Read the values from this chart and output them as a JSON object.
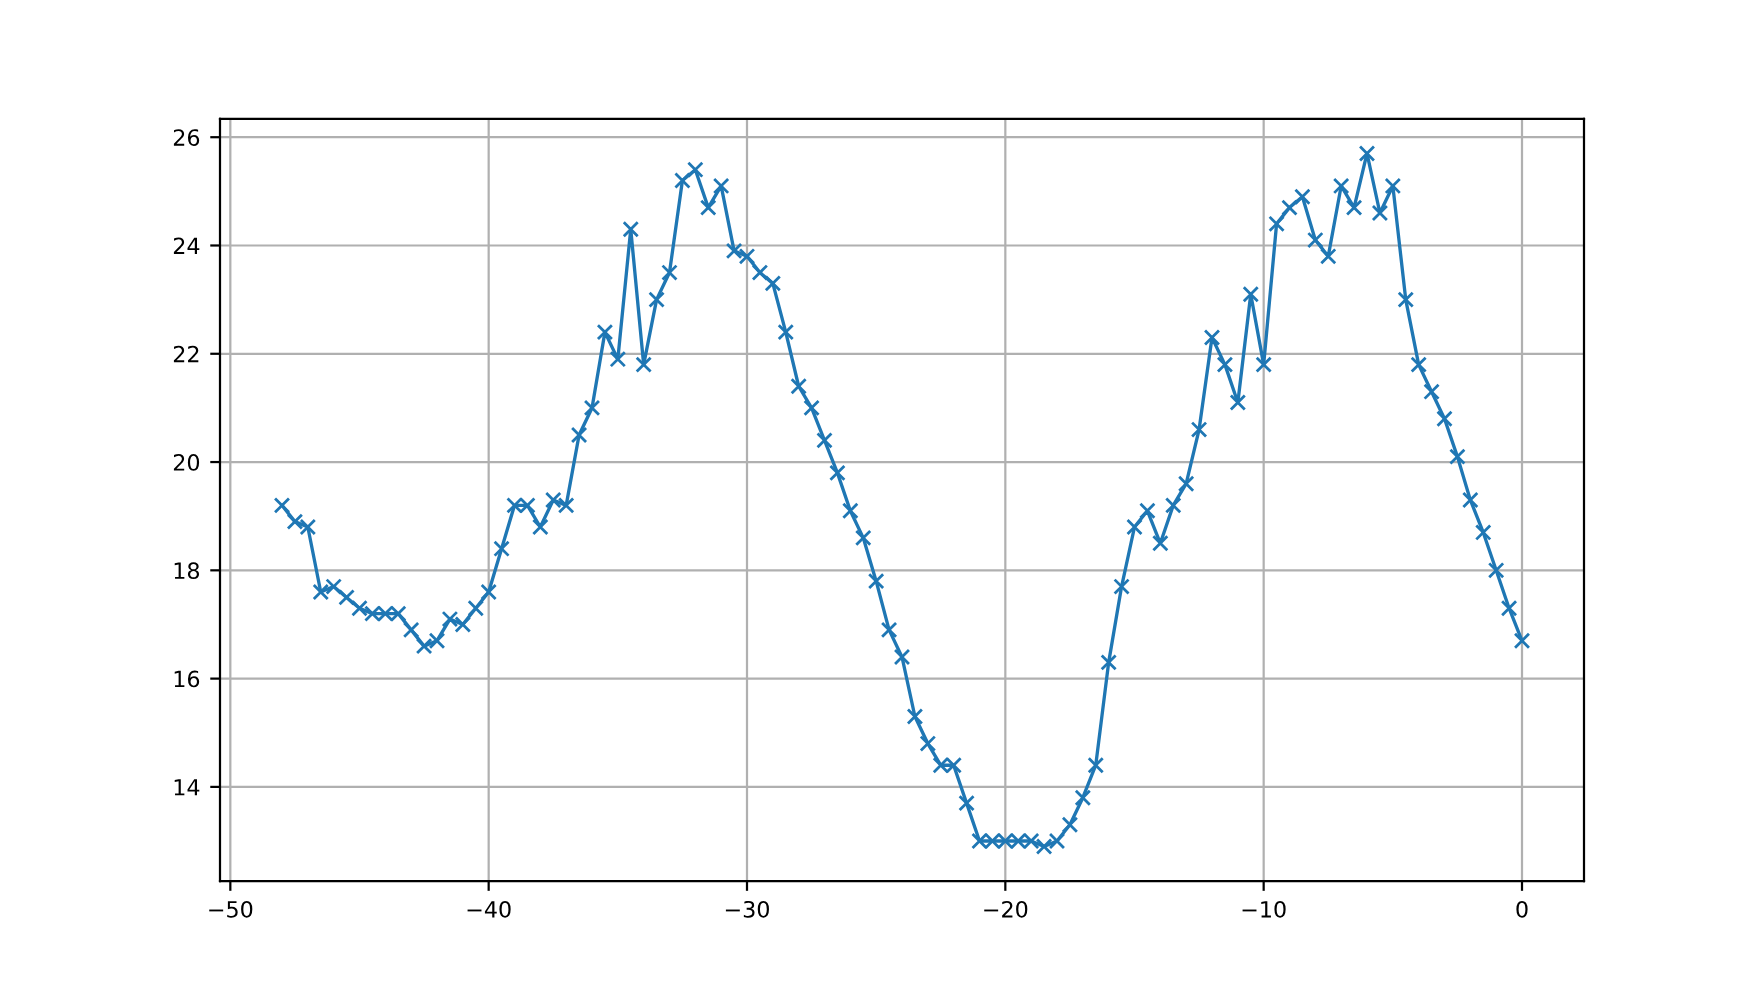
{
  "chart_data": {
    "type": "line",
    "x": [
      -48,
      -47.5,
      -47,
      -46.5,
      -46,
      -45.5,
      -45,
      -44.5,
      -44,
      -43.5,
      -43,
      -42.5,
      -42,
      -41.5,
      -41,
      -40.5,
      -40,
      -39.5,
      -39,
      -38.5,
      -38,
      -37.5,
      -37,
      -36.5,
      -36,
      -35.5,
      -35,
      -34.5,
      -34,
      -33.5,
      -33,
      -32.5,
      -32,
      -31.5,
      -31,
      -30.5,
      -30,
      -29.5,
      -29,
      -28.5,
      -28,
      -27.5,
      -27,
      -26.5,
      -26,
      -25.5,
      -25,
      -24.5,
      -24,
      -23.5,
      -23,
      -22.5,
      -22,
      -21.5,
      -21,
      -20.5,
      -20,
      -19.5,
      -19,
      -18.5,
      -18,
      -17.5,
      -17,
      -16.5,
      -16,
      -15.5,
      -15,
      -14.5,
      -14,
      -13.5,
      -13,
      -12.5,
      -12,
      -11.5,
      -11,
      -10.5,
      -10,
      -9.5,
      -9,
      -8.5,
      -8,
      -7.5,
      -7,
      -6.5,
      -6,
      -5.5,
      -5,
      -4.5,
      -4,
      -3.5,
      -3,
      -2.5,
      -2,
      -1.5,
      -1,
      -0.5,
      0
    ],
    "series": [
      {
        "color": "#1f77b4",
        "values": [
          19.2,
          18.9,
          18.8,
          17.6,
          17.7,
          17.5,
          17.3,
          17.2,
          17.2,
          17.2,
          16.9,
          16.6,
          16.7,
          17.1,
          17.0,
          17.3,
          17.6,
          18.4,
          19.2,
          19.2,
          18.8,
          19.3,
          19.2,
          20.5,
          21.0,
          22.4,
          21.9,
          24.3,
          21.8,
          23.0,
          23.5,
          25.2,
          25.4,
          24.7,
          25.1,
          23.9,
          23.8,
          23.5,
          23.3,
          22.4,
          21.4,
          21.0,
          20.4,
          19.8,
          19.1,
          18.6,
          17.8,
          16.9,
          16.4,
          15.3,
          14.8,
          14.4,
          14.4,
          13.7,
          13.0,
          13.0,
          13.0,
          13.0,
          13.0,
          12.9,
          13.0,
          13.3,
          13.8,
          14.4,
          16.3,
          17.7,
          18.8,
          19.1,
          18.5,
          19.2,
          19.6,
          20.6,
          22.3,
          21.8,
          21.1,
          23.1,
          21.8,
          24.4,
          24.7,
          24.9,
          24.1,
          23.8,
          25.1,
          24.7,
          25.7,
          24.6,
          25.1,
          23.0,
          21.8,
          21.3,
          20.8,
          20.1,
          19.3,
          18.7,
          18.0,
          17.3,
          16.7
        ]
      }
    ],
    "xlim": [
      -50.4,
      2.4
    ],
    "ylim": [
      12.26,
      26.34
    ],
    "xticks": [
      {
        "value": -50,
        "label": "−50"
      },
      {
        "value": -40,
        "label": "−40"
      },
      {
        "value": -30,
        "label": "−30"
      },
      {
        "value": -20,
        "label": "−20"
      },
      {
        "value": -10,
        "label": "−10"
      },
      0
    ],
    "yticks": [
      14,
      16,
      18,
      20,
      22,
      24,
      26
    ],
    "grid": true,
    "marker": "cross",
    "line_style": "solid"
  }
}
